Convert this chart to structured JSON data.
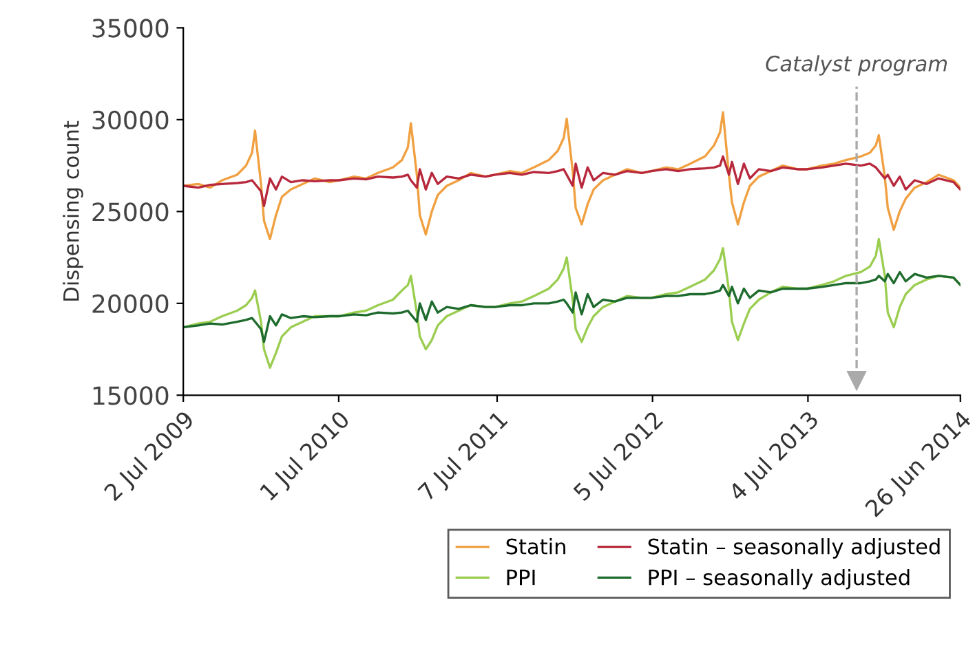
{
  "chart_data": {
    "type": "line",
    "ylabel": "Dispensing count",
    "x": [
      "2009-07-02",
      "2009-08-06",
      "2009-09-03",
      "2009-10-01",
      "2009-11-05",
      "2009-11-26",
      "2009-12-10",
      "2009-12-17",
      "2009-12-31",
      "2010-01-07",
      "2010-01-21",
      "2010-02-04",
      "2010-02-18",
      "2010-03-11",
      "2010-04-08",
      "2010-05-06",
      "2010-06-10",
      "2010-07-02",
      "2010-08-06",
      "2010-09-03",
      "2010-10-01",
      "2010-11-05",
      "2010-11-26",
      "2010-12-10",
      "2010-12-17",
      "2010-12-31",
      "2011-01-07",
      "2011-01-21",
      "2011-02-04",
      "2011-02-18",
      "2011-03-11",
      "2011-04-08",
      "2011-05-06",
      "2011-06-10",
      "2011-07-02",
      "2011-08-06",
      "2011-09-03",
      "2011-10-01",
      "2011-11-05",
      "2011-11-26",
      "2011-12-10",
      "2011-12-17",
      "2011-12-31",
      "2012-01-07",
      "2012-01-21",
      "2012-02-04",
      "2012-02-18",
      "2012-03-11",
      "2012-04-08",
      "2012-05-06",
      "2012-06-10",
      "2012-07-02",
      "2012-08-06",
      "2012-09-03",
      "2012-10-01",
      "2012-11-05",
      "2012-11-26",
      "2012-12-10",
      "2012-12-17",
      "2012-12-31",
      "2013-01-07",
      "2013-01-21",
      "2013-02-04",
      "2013-02-18",
      "2013-03-11",
      "2013-04-08",
      "2013-05-06",
      "2013-06-10",
      "2013-07-02",
      "2013-08-06",
      "2013-09-03",
      "2013-10-01",
      "2013-11-05",
      "2013-11-26",
      "2013-12-10",
      "2013-12-17",
      "2013-12-31",
      "2014-01-07",
      "2014-01-21",
      "2014-02-04",
      "2014-02-18",
      "2014-03-11",
      "2014-04-08",
      "2014-05-06",
      "2014-06-10",
      "2014-06-26"
    ],
    "series": [
      {
        "name": "Statin",
        "color": "#f0a040",
        "values": [
          26400,
          26500,
          26300,
          26700,
          27000,
          27500,
          28200,
          29400,
          26500,
          24500,
          23500,
          24800,
          25800,
          26200,
          26500,
          26800,
          26600,
          26700,
          26900,
          26800,
          27100,
          27400,
          27800,
          28500,
          29800,
          27000,
          24800,
          23750,
          25000,
          25900,
          26400,
          26700,
          27100,
          26900,
          27000,
          27200,
          27100,
          27400,
          27800,
          28300,
          29000,
          30050,
          27200,
          25200,
          24300,
          25400,
          26200,
          26700,
          27000,
          27300,
          27100,
          27200,
          27400,
          27300,
          27600,
          28000,
          28600,
          29300,
          30400,
          27000,
          25500,
          24300,
          25500,
          26400,
          26900,
          27200,
          27500,
          27300,
          27300,
          27500,
          27600,
          27800,
          28000,
          28200,
          28600,
          29150,
          26900,
          25200,
          24000,
          25000,
          25700,
          26300,
          26600,
          27000,
          26700,
          26300
        ]
      },
      {
        "name": "PPI",
        "color": "#9acd50",
        "values": [
          18700,
          18900,
          19000,
          19300,
          19600,
          19900,
          20300,
          20700,
          19000,
          17500,
          16500,
          17300,
          18200,
          18700,
          19000,
          19300,
          19300,
          19300,
          19500,
          19600,
          19900,
          20200,
          20700,
          21000,
          21500,
          19500,
          18200,
          17500,
          18000,
          18800,
          19300,
          19600,
          19900,
          19800,
          19800,
          20000,
          20100,
          20400,
          20800,
          21300,
          21900,
          22500,
          20200,
          18600,
          17900,
          18700,
          19300,
          19800,
          20100,
          20400,
          20300,
          20300,
          20500,
          20600,
          20900,
          21300,
          21800,
          22400,
          23000,
          20700,
          19000,
          18000,
          18900,
          19700,
          20200,
          20600,
          20900,
          20800,
          20800,
          21000,
          21200,
          21500,
          21700,
          22000,
          22600,
          23500,
          21500,
          19500,
          18700,
          19800,
          20500,
          21000,
          21300,
          21500,
          21400,
          21000
        ]
      },
      {
        "name": "Statin – seasonally adjusted",
        "color": "#b8283c",
        "values": [
          26400,
          26300,
          26450,
          26500,
          26550,
          26600,
          26700,
          26500,
          26100,
          25300,
          26800,
          26200,
          26900,
          26600,
          26700,
          26650,
          26700,
          26700,
          26800,
          26750,
          26900,
          26850,
          26900,
          27000,
          26700,
          26300,
          27300,
          26200,
          27100,
          26500,
          26900,
          26800,
          27000,
          26900,
          27000,
          27100,
          27000,
          27150,
          27100,
          27200,
          27300,
          27000,
          26400,
          27600,
          26300,
          27400,
          26700,
          27100,
          27000,
          27200,
          27100,
          27200,
          27300,
          27200,
          27300,
          27350,
          27400,
          27500,
          28000,
          27000,
          27700,
          26500,
          27600,
          26800,
          27300,
          27200,
          27400,
          27300,
          27300,
          27400,
          27500,
          27600,
          27500,
          27600,
          27400,
          27200,
          26800,
          27000,
          26400,
          26900,
          26200,
          26700,
          26500,
          26800,
          26600,
          26200
        ]
      },
      {
        "name": "PPI – seasonally adjusted",
        "color": "#1e6b2e",
        "values": [
          18700,
          18800,
          18900,
          18850,
          19000,
          19100,
          19200,
          19000,
          18600,
          17900,
          19300,
          18800,
          19400,
          19200,
          19300,
          19250,
          19300,
          19300,
          19400,
          19350,
          19500,
          19450,
          19500,
          19600,
          19400,
          19000,
          20000,
          19100,
          20100,
          19500,
          19800,
          19700,
          19900,
          19800,
          19800,
          19900,
          19900,
          20000,
          20000,
          20100,
          20200,
          20000,
          19500,
          20600,
          19400,
          20500,
          19800,
          20200,
          20100,
          20300,
          20300,
          20300,
          20400,
          20400,
          20500,
          20500,
          20600,
          20700,
          21000,
          20400,
          20900,
          20000,
          20800,
          20300,
          20700,
          20600,
          20800,
          20800,
          20800,
          20900,
          21000,
          21100,
          21100,
          21200,
          21300,
          21500,
          21200,
          21600,
          21100,
          21700,
          21200,
          21600,
          21400,
          21500,
          21400,
          21000
        ]
      }
    ],
    "xlim": [
      "2009-07-02",
      "2014-06-26"
    ],
    "xticks": [
      {
        "value": "2009-07-02",
        "label": "2 Jul 2009"
      },
      {
        "value": "2010-07-01",
        "label": "1 Jul 2010"
      },
      {
        "value": "2011-07-07",
        "label": "7 Jul 2011"
      },
      {
        "value": "2012-07-05",
        "label": "5 Jul 2012"
      },
      {
        "value": "2013-07-04",
        "label": "4 Jul 2013"
      },
      {
        "value": "2014-06-26",
        "label": "26 Jun 2014"
      }
    ],
    "ylim": [
      15000,
      35000
    ],
    "yticks": [
      15000,
      20000,
      25000,
      30000,
      35000
    ],
    "ref_lines": [
      {
        "axis": "x",
        "value": "2013-10-26",
        "label": "Catalyst program",
        "color": "#aaaaaa",
        "line_style": "dashed"
      }
    ],
    "grid": false,
    "legend": "bottom",
    "marker": "none",
    "line_style": "solid"
  }
}
